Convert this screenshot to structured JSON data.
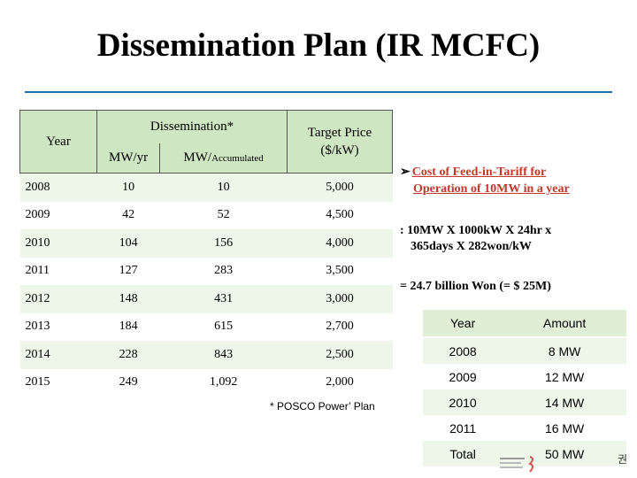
{
  "title": "Dissemination Plan (IR MCFC)",
  "main_table": {
    "header_year": "Year",
    "header_dissemination": "Dissemination*",
    "header_mw_yr": "MW/yr",
    "header_mw_acc_prefix": "MW/",
    "header_mw_acc_suffix": "Accumulated",
    "header_target_line1": "Target Price",
    "header_target_line2": "($/kW)",
    "rows": [
      {
        "year": "2008",
        "mw_yr": "10",
        "mw_acc": "10",
        "price": "5,000"
      },
      {
        "year": "2009",
        "mw_yr": "42",
        "mw_acc": "52",
        "price": "4,500"
      },
      {
        "year": "2010",
        "mw_yr": "104",
        "mw_acc": "156",
        "price": "4,000"
      },
      {
        "year": "2011",
        "mw_yr": "127",
        "mw_acc": "283",
        "price": "3,500"
      },
      {
        "year": "2012",
        "mw_yr": "148",
        "mw_acc": "431",
        "price": "3,000"
      },
      {
        "year": "2013",
        "mw_yr": "184",
        "mw_acc": "615",
        "price": "2,700"
      },
      {
        "year": "2014",
        "mw_yr": "228",
        "mw_acc": "843",
        "price": "2,500"
      },
      {
        "year": "2015",
        "mw_yr": "249",
        "mw_acc": "1,092",
        "price": "2,000"
      }
    ]
  },
  "footnote": "* POSCO Power’ Plan",
  "bullet": {
    "line1": "Cost of Feed-in-Tariff for",
    "line2": "Operation of 10MW in a year"
  },
  "calc": {
    "line1": ": 10MW X 1000kW X 24hr x",
    "line2": "365days X 282won/kW"
  },
  "result": "= 24.7 billion Won (= $ 25M)",
  "small_table": {
    "header_year": "Year",
    "header_amount": "Amount",
    "rows": [
      {
        "year": "2008",
        "amount": "8 MW"
      },
      {
        "year": "2009",
        "amount": "12 MW"
      },
      {
        "year": "2010",
        "amount": "14 MW"
      },
      {
        "year": "2011",
        "amount": "16 MW"
      },
      {
        "year": "Total",
        "amount": "50 MW"
      }
    ]
  },
  "corner_mark": "권",
  "colors": {
    "header_green": "#cfe6c2",
    "row_green": "#eef6e9",
    "bullet_red": "#c0392b",
    "rule_blue": "#1f6fb0"
  }
}
